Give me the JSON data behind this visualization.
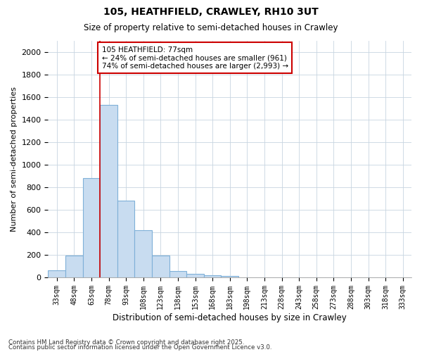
{
  "title": "105, HEATHFIELD, CRAWLEY, RH10 3UT",
  "subtitle": "Size of property relative to semi-detached houses in Crawley",
  "xlabel": "Distribution of semi-detached houses by size in Crawley",
  "ylabel": "Number of semi-detached properties",
  "bins": [
    "33sqm",
    "48sqm",
    "63sqm",
    "78sqm",
    "93sqm",
    "108sqm",
    "123sqm",
    "138sqm",
    "153sqm",
    "168sqm",
    "183sqm",
    "198sqm",
    "213sqm",
    "228sqm",
    "243sqm",
    "258sqm",
    "273sqm",
    "288sqm",
    "303sqm",
    "318sqm",
    "333sqm"
  ],
  "values": [
    65,
    195,
    880,
    1530,
    680,
    415,
    195,
    55,
    30,
    20,
    10,
    0,
    0,
    0,
    0,
    0,
    0,
    0,
    0,
    0,
    0
  ],
  "bar_color": "#c8dcf0",
  "bar_edge_color": "#7fb0d8",
  "vline_color": "#cc0000",
  "vline_bin_index": 3,
  "annotation_text": "105 HEATHFIELD: 77sqm\n← 24% of semi-detached houses are smaller (961)\n74% of semi-detached houses are larger (2,993) →",
  "annotation_box_edge_color": "#cc0000",
  "ylim": [
    0,
    2100
  ],
  "yticks": [
    0,
    200,
    400,
    600,
    800,
    1000,
    1200,
    1400,
    1600,
    1800,
    2000
  ],
  "footer_line1": "Contains HM Land Registry data © Crown copyright and database right 2025.",
  "footer_line2": "Contains public sector information licensed under the Open Government Licence v3.0.",
  "bg_color": "#ffffff",
  "plot_bg_color": "#ffffff",
  "grid_color": "#c8d4e0"
}
